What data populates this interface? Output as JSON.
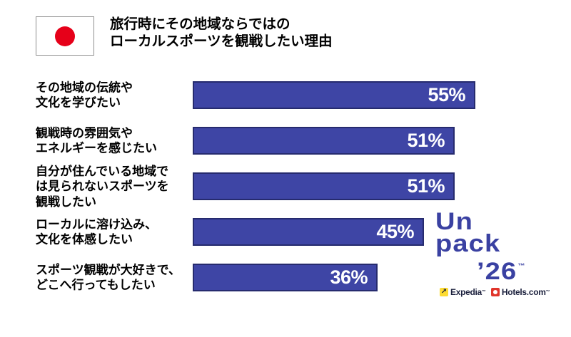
{
  "header": {
    "flag": "japan",
    "title_lines": [
      "旅行時にその地域ならではの",
      "ローカルスポーツを観戦したい理由"
    ]
  },
  "chart_data": {
    "type": "bar",
    "orientation": "horizontal",
    "title": "旅行時にその地域ならではのローカルスポーツを観戦したい理由",
    "unit": "%",
    "xlim": [
      0,
      60
    ],
    "grid": false,
    "legend": "none",
    "bar_color": "#3E45A5",
    "bar_border_color": "#262B6E",
    "value_label_color": "#FFFFFF",
    "categories": [
      "その地域の伝統や文化を学びたい",
      "観戦時の雰囲気やエネルギーを感じたい",
      "自分が住んでいる地域では見られないスポーツを観戦したい",
      "ローカルに溶け込み、文化を体感したい",
      "スポーツ観戦が大好きで、どこへ行ってもしたい"
    ],
    "values": [
      55,
      51,
      51,
      45,
      36
    ],
    "items": [
      {
        "label_lines": [
          "その地域の伝統や",
          "文化を学びたい"
        ],
        "value": 55,
        "display": "55%"
      },
      {
        "label_lines": [
          "観戦時の雰囲気や",
          "エネルギーを感じたい"
        ],
        "value": 51,
        "display": "51%"
      },
      {
        "label_lines": [
          "自分が住んでいる地域で",
          "は見られないスポーツを",
          "観戦したい"
        ],
        "value": 51,
        "display": "51%"
      },
      {
        "label_lines": [
          "ローカルに溶け込み、",
          "文化を体感したい"
        ],
        "value": 45,
        "display": "45%"
      },
      {
        "label_lines": [
          "スポーツ観戦が大好きで、",
          "どこへ行ってもしたい"
        ],
        "value": 36,
        "display": "36%"
      }
    ]
  },
  "logo": {
    "lines": [
      "Un",
      "pack",
      "’26"
    ],
    "trademark": "™",
    "color": "#3A41A2"
  },
  "brands": {
    "expedia": {
      "label": "Expedia",
      "tm": "™",
      "icon_glyph": "↗",
      "icon_color": "#FDDB32"
    },
    "hotels": {
      "label": "Hotels.com",
      "tm": "™",
      "icon_color": "#E0352B"
    }
  },
  "colors": {
    "background": "#FFFFFF",
    "text": "#000000",
    "flag_red": "#E60019",
    "navy": "#191E3B"
  }
}
